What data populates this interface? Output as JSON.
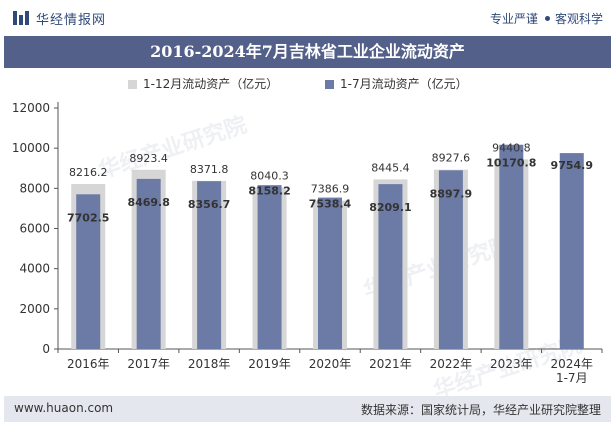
{
  "header": {
    "logo_text": "华经情报网",
    "tagline_left": "专业严谨",
    "tagline_right": "客观科学"
  },
  "footer": {
    "website": "www.huaon.com",
    "source": "数据来源：国家统计局，华经产业研究院整理"
  },
  "watermark": "华经产业研究院",
  "colors": {
    "title_bg": "#52608a",
    "series_1_12": "#d6d6d6",
    "series_1_7": "#6c7ba6",
    "footer_bg": "#e4e7ee"
  },
  "chart_data": {
    "type": "bar",
    "title": "2016-2024年7月吉林省工业企业流动资产",
    "xlabel": "",
    "ylabel": "",
    "ylim": [
      0,
      12000
    ],
    "yticks": [
      0,
      2000,
      4000,
      6000,
      8000,
      10000,
      12000
    ],
    "categories": [
      "2016年",
      "2017年",
      "2018年",
      "2019年",
      "2020年",
      "2021年",
      "2022年",
      "2023年",
      "2024年\n1-7月"
    ],
    "series": [
      {
        "name": "1-12月流动资产（亿元）",
        "values": [
          8216.2,
          8923.4,
          8371.8,
          8040.3,
          7386.9,
          8445.4,
          8927.6,
          9440.8,
          null
        ]
      },
      {
        "name": "1-7月流动资产（亿元）",
        "values": [
          7702.5,
          8469.8,
          8356.7,
          8158.2,
          7538.4,
          8209.1,
          8897.9,
          10170.8,
          9754.9
        ]
      }
    ],
    "grid": false,
    "legend_position": "top"
  }
}
